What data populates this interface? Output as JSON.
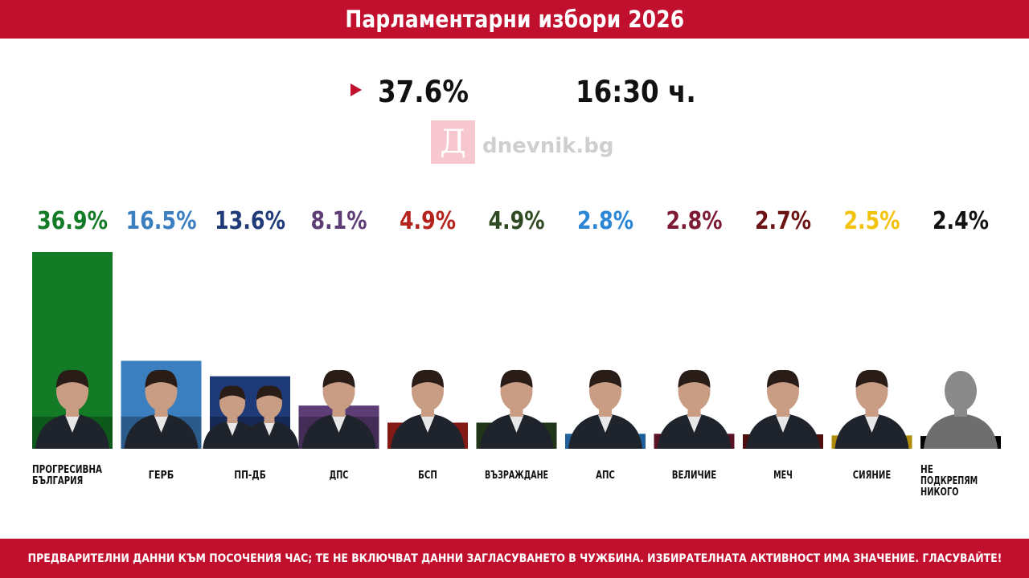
{
  "header": {
    "title": "Парламентарни избори 2026"
  },
  "stats": {
    "turnout": "37.6%",
    "time": "16:30 ч."
  },
  "logo": {
    "letter": "Д",
    "text": "dnevnik.bg"
  },
  "footer": {
    "disclaimer": "ПРЕДВАРИТЕЛНИ ДАННИ КЪМ ПОСОЧЕНИЯ ЧАС; ТЕ НЕ ВКЛЮЧВАТ ДАННИ ЗАГЛАСУВАНЕТО В ЧУЖБИНА. ИЗБИРАТЕЛНАТА АКТИВНОСТ ИМА ЗНАЧЕНИЕ. ГЛАСУВАЙТЕ!"
  },
  "chart_data": {
    "type": "bar",
    "categories": [
      "ПРОГРЕСИВНА БЪЛГАРИЯ",
      "ГЕРБ",
      "ПП-ДБ",
      "ДПС",
      "БСП",
      "ВЪЗРАЖДАНЕ",
      "АПС",
      "ВЕЛИЧИЕ",
      "МЕЧ",
      "СИЯНИЕ",
      "НЕ ПОДКРЕПЯМ НИКОГО"
    ],
    "category_lines": [
      [
        "ПРОГРЕСИВНА",
        "БЪЛГАРИЯ"
      ],
      [
        "ГЕРБ"
      ],
      [
        "ПП-ДБ"
      ],
      [
        "ДПС"
      ],
      [
        "БСП"
      ],
      [
        "ВЪЗРАЖДАНЕ"
      ],
      [
        "АПС"
      ],
      [
        "ВЕЛИЧИЕ"
      ],
      [
        "МЕЧ"
      ],
      [
        "СИЯНИЕ"
      ],
      [
        "НЕ",
        "ПОДКРЕПЯМ",
        "НИКОГО"
      ]
    ],
    "values": [
      36.9,
      16.5,
      13.6,
      8.1,
      4.9,
      4.9,
      2.8,
      2.8,
      2.7,
      2.5,
      2.4
    ],
    "value_labels": [
      "36.9%",
      "16.5%",
      "13.6%",
      "8.1%",
      "4.9%",
      "4.9%",
      "2.8%",
      "2.8%",
      "2.7%",
      "2.5%",
      "2.4%"
    ],
    "colors": [
      "#137a26",
      "#3c7fc1",
      "#1f3a78",
      "#5e3d77",
      "#b5231d",
      "#2f4a23",
      "#2c86d6",
      "#7d1a34",
      "#6c1414",
      "#f3c20e",
      "#000000"
    ],
    "label_colors": [
      "#137a26",
      "#3c7fc1",
      "#1f3a78",
      "#5e3d77",
      "#b5231d",
      "#2f4a23",
      "#2c86d6",
      "#7d1a34",
      "#6c1414",
      "#f3c20e",
      "#111111"
    ],
    "portraits": [
      1,
      1,
      2,
      1,
      1,
      1,
      1,
      1,
      1,
      1,
      1
    ],
    "ylim": [
      0,
      36.9
    ],
    "grid": false,
    "title": "",
    "xlabel": "",
    "ylabel": ""
  }
}
